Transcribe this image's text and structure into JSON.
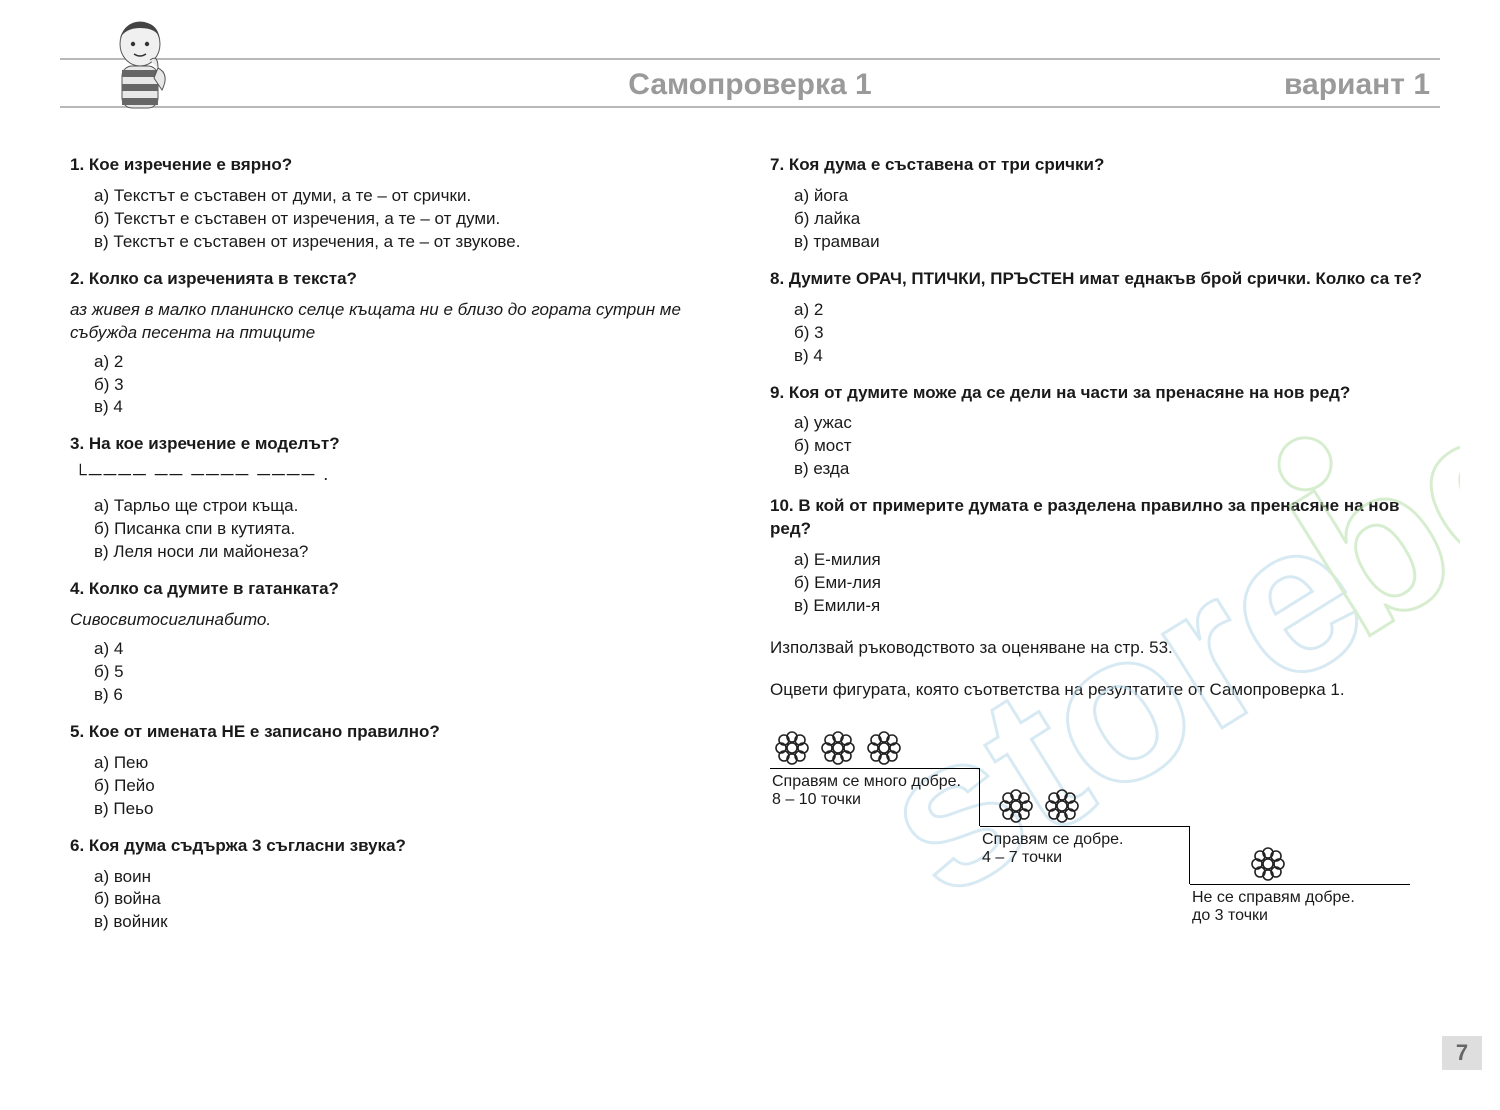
{
  "header": {
    "title": "Самопроверка 1",
    "variant": "вариант 1",
    "line_color": "#b8b8b8",
    "title_color": "#9a9a9a"
  },
  "page_number": "7",
  "left": {
    "q1": {
      "title": "1. Кое изречение е вярно?",
      "a": "а) Текстът е съставен от думи, а те – от срички.",
      "b": "б) Текстът е съставен от изречения, а те – от думи.",
      "c": "в) Текстът е съставен от изречения, а те – от звукове."
    },
    "q2": {
      "title": "2. Колко са изреченията в текста?",
      "note": "аз живея в малко планинско селце къщата ни е близо до гората сутрин ме събужда песента на птиците",
      "a": "а) 2",
      "b": "б) 3",
      "c": "в) 4"
    },
    "q3": {
      "title": "3. На кое изречение е моделът?",
      "model": "└──── ── ──── ──── .",
      "a": "а) Тарльо ще строи къща.",
      "b": "б) Писанка спи в кутията.",
      "c": "в) Леля носи ли майонеза?"
    },
    "q4": {
      "title": "4. Колко са думите в гатанката?",
      "note": "Сивосвитосиглинабито.",
      "a": "а) 4",
      "b": "б) 5",
      "c": "в) 6"
    },
    "q5": {
      "title": "5. Кое от имената НЕ е записано правилно?",
      "a": "а) Пею",
      "b": "б) Пейо",
      "c": "в) Пеьо"
    },
    "q6": {
      "title": "6. Коя дума съдържа 3 съгласни звука?",
      "a": "а) воин",
      "b": "б) война",
      "c": "в) войник"
    }
  },
  "right": {
    "q7": {
      "title": "7. Коя дума е съставена от три срички?",
      "a": "а) йога",
      "b": "б) лайка",
      "c": "в) трамваи"
    },
    "q8": {
      "title": "8. Думите ОРАЧ, ПТИЧКИ, ПРЪСТЕН имат еднакъв брой срички. Колко са те?",
      "a": "а) 2",
      "b": "б) 3",
      "c": "в) 4"
    },
    "q9": {
      "title": "9. Коя от думите може да се дели на части за  пренасяне на нов ред?",
      "a": "а) ужас",
      "b": "б) мост",
      "c": "в) езда"
    },
    "q10": {
      "title": "10. В кой от примерите думата е разделена правилно за пренасяне на нов ред?",
      "a": "а) Е-милия",
      "b": "б) Еми-лия",
      "c": "в) Емили-я"
    },
    "instr1": "Използвай ръководството за оценяване на стр. 53.",
    "instr2": "Оцвети фигурата, която съответства на резултатите от Самопроверка 1.",
    "steps": {
      "s1_label": "Справям се много добре.",
      "s1_pts": "8 – 10 точки",
      "s2_label": "Справям се добре.",
      "s2_pts": "4 – 7 точки",
      "s3_label": "Не се справям добре.",
      "s3_pts": "до 3 точки",
      "flower_counts": [
        3,
        2,
        1
      ]
    }
  },
  "watermark": {
    "text_color": "#b8d8e8",
    "dot_color": "#b8e0a8"
  }
}
